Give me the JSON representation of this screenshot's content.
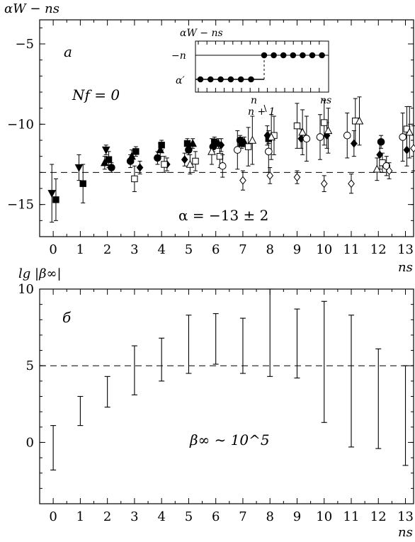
{
  "chart_data": [
    {
      "type": "scatter",
      "panel_label": "a",
      "ylabel": "αW − ns",
      "xlabel": "ns",
      "xlim": [
        -0.5,
        13.3
      ],
      "ylim": [
        -17,
        -3.5
      ],
      "xticks": [
        0,
        1,
        2,
        3,
        4,
        5,
        6,
        7,
        8,
        9,
        10,
        11,
        12,
        13
      ],
      "yticks": [
        -5,
        -10,
        -15
      ],
      "reference_line": {
        "y": -13,
        "style": "dashed"
      },
      "annotations": {
        "nf": "Nf = 0",
        "alpha": "α = −13 ± 2"
      },
      "series": [
        {
          "marker": "filled-triangle-down",
          "points": [
            [
              -0.05,
              -14.3,
              1.8
            ],
            [
              0.95,
              -12.7,
              0.8
            ],
            [
              1.95,
              -11.6,
              0.3
            ]
          ]
        },
        {
          "marker": "filled-square",
          "points": [
            [
              0.1,
              -14.7,
              1.3
            ],
            [
              1.1,
              -13.7,
              1.2
            ],
            [
              2.05,
              -12.2,
              0.5
            ],
            [
              3.05,
              -11.7,
              0.3
            ],
            [
              4.0,
              -11.3,
              0.3
            ],
            [
              4.95,
              -11.2,
              0.3
            ],
            [
              5.95,
              -11.1,
              0.3
            ],
            [
              6.95,
              -11.2,
              0.3
            ],
            [
              7.95,
              -10.9,
              0.3
            ]
          ]
        },
        {
          "marker": "filled-triangle-up",
          "points": [
            [
              1.9,
              -12.4,
              0.4
            ],
            [
              2.9,
              -12.0,
              0.4
            ],
            [
              3.95,
              -11.6,
              0.4
            ],
            [
              5.15,
              -11.2,
              0.3
            ],
            [
              6.1,
              -11.2,
              0.3
            ],
            [
              7.05,
              -11.1,
              0.3
            ]
          ]
        },
        {
          "marker": "filled-circle",
          "points": [
            [
              2.15,
              -12.7,
              0.3
            ],
            [
              2.85,
              -12.3,
              0.4
            ],
            [
              3.85,
              -12.1,
              0.4
            ],
            [
              5.0,
              -11.6,
              0.3
            ],
            [
              5.9,
              -11.4,
              0.3
            ],
            [
              6.9,
              -11.0,
              0.3
            ],
            [
              12.1,
              -11.1,
              0.4
            ]
          ]
        },
        {
          "marker": "filled-diamond",
          "points": [
            [
              3.2,
              -12.7,
              0.4
            ],
            [
              4.2,
              -12.5,
              0.4
            ],
            [
              4.85,
              -12.2,
              0.4
            ],
            [
              6.2,
              -11.3,
              0.4
            ],
            [
              7.9,
              -10.7,
              0.6
            ],
            [
              9.15,
              -10.9,
              0.6
            ],
            [
              10.1,
              -10.7,
              0.8
            ],
            [
              11.1,
              -11.2,
              0.8
            ],
            [
              12.05,
              -11.9,
              0.9
            ],
            [
              13.05,
              -11.6,
              1.0
            ]
          ]
        },
        {
          "marker": "open-square",
          "points": [
            [
              3.0,
              -13.4,
              0.8
            ],
            [
              4.1,
              -12.5,
              0.5
            ],
            [
              5.25,
              -12.3,
              0.6
            ],
            [
              6.15,
              -12.0,
              0.7
            ],
            [
              7.2,
              -11.4,
              1.2
            ],
            [
              8.15,
              -10.7,
              1.2
            ],
            [
              9.0,
              -10.1,
              1.4
            ],
            [
              10.0,
              -9.9,
              1.4
            ],
            [
              11.15,
              -9.8,
              1.4
            ],
            [
              12.15,
              -12.4,
              0.6
            ],
            [
              13.05,
              -10.3,
              1.4
            ]
          ]
        },
        {
          "marker": "open-triangle-up",
          "points": [
            [
              5.05,
              -12.5,
              0.6
            ],
            [
              5.85,
              -11.7,
              0.8
            ],
            [
              7.35,
              -11.0,
              1.5
            ],
            [
              8.05,
              -10.8,
              1.4
            ],
            [
              9.2,
              -10.5,
              1.4
            ],
            [
              10.15,
              -10.4,
              1.4
            ],
            [
              11.3,
              -9.8,
              1.5
            ],
            [
              11.95,
              -12.8,
              0.7
            ],
            [
              13.15,
              -10.5,
              1.6
            ]
          ]
        },
        {
          "marker": "open-circle",
          "points": [
            [
              6.25,
              -12.6,
              0.7
            ],
            [
              6.8,
              -11.6,
              1.2
            ],
            [
              7.95,
              -11.7,
              1.3
            ],
            [
              9.35,
              -10.9,
              1.4
            ],
            [
              9.85,
              -10.8,
              1.4
            ],
            [
              10.85,
              -10.7,
              1.4
            ],
            [
              12.3,
              -12.6,
              0.6
            ],
            [
              12.9,
              -10.8,
              1.5
            ]
          ]
        },
        {
          "marker": "open-diamond",
          "points": [
            [
              7.0,
              -13.5,
              0.6
            ],
            [
              8.0,
              -13.2,
              0.5
            ],
            [
              9.0,
              -13.3,
              0.4
            ],
            [
              10.0,
              -13.7,
              0.5
            ],
            [
              11.0,
              -13.7,
              0.6
            ],
            [
              12.4,
              -12.9,
              0.5
            ],
            [
              13.3,
              -11.5,
              1.4
            ]
          ]
        }
      ],
      "inset": {
        "ylabel": "αW − ns",
        "y_high_label": "−n",
        "y_low_label": "α′",
        "x_label_n": "n",
        "x_label_n1": "n + 1",
        "x_label_ns": "ns"
      }
    },
    {
      "type": "errorbar",
      "panel_label": "б",
      "ylabel": "lg |β∞|",
      "xlabel": "ns",
      "xlim": [
        -0.5,
        13.3
      ],
      "ylim": [
        -4,
        10
      ],
      "xticks": [
        0,
        1,
        2,
        3,
        4,
        5,
        6,
        7,
        8,
        9,
        10,
        11,
        12,
        13
      ],
      "yticks": [
        10,
        5,
        0
      ],
      "reference_line": {
        "y": 5,
        "style": "dashed"
      },
      "annotation": "β∞ ∼ 10^5",
      "intervals": [
        {
          "x": 0,
          "low": -1.8,
          "high": 1.1
        },
        {
          "x": 1,
          "low": 1.1,
          "high": 3.0
        },
        {
          "x": 2,
          "low": 2.3,
          "high": 4.3
        },
        {
          "x": 3,
          "low": 3.1,
          "high": 6.3
        },
        {
          "x": 4,
          "low": 4.0,
          "high": 6.8
        },
        {
          "x": 5,
          "low": 4.5,
          "high": 8.3
        },
        {
          "x": 6,
          "low": 5.1,
          "high": 8.4
        },
        {
          "x": 7,
          "low": 4.5,
          "high": 8.1
        },
        {
          "x": 8,
          "low": 4.3,
          "high": 10.0
        },
        {
          "x": 9,
          "low": 4.2,
          "high": 8.7
        },
        {
          "x": 10,
          "low": 1.3,
          "high": 9.2
        },
        {
          "x": 11,
          "low": -0.3,
          "high": 8.3
        },
        {
          "x": 12,
          "low": -0.4,
          "high": 6.1
        },
        {
          "x": 13,
          "low": -1.5,
          "high": 5.0
        }
      ]
    }
  ]
}
